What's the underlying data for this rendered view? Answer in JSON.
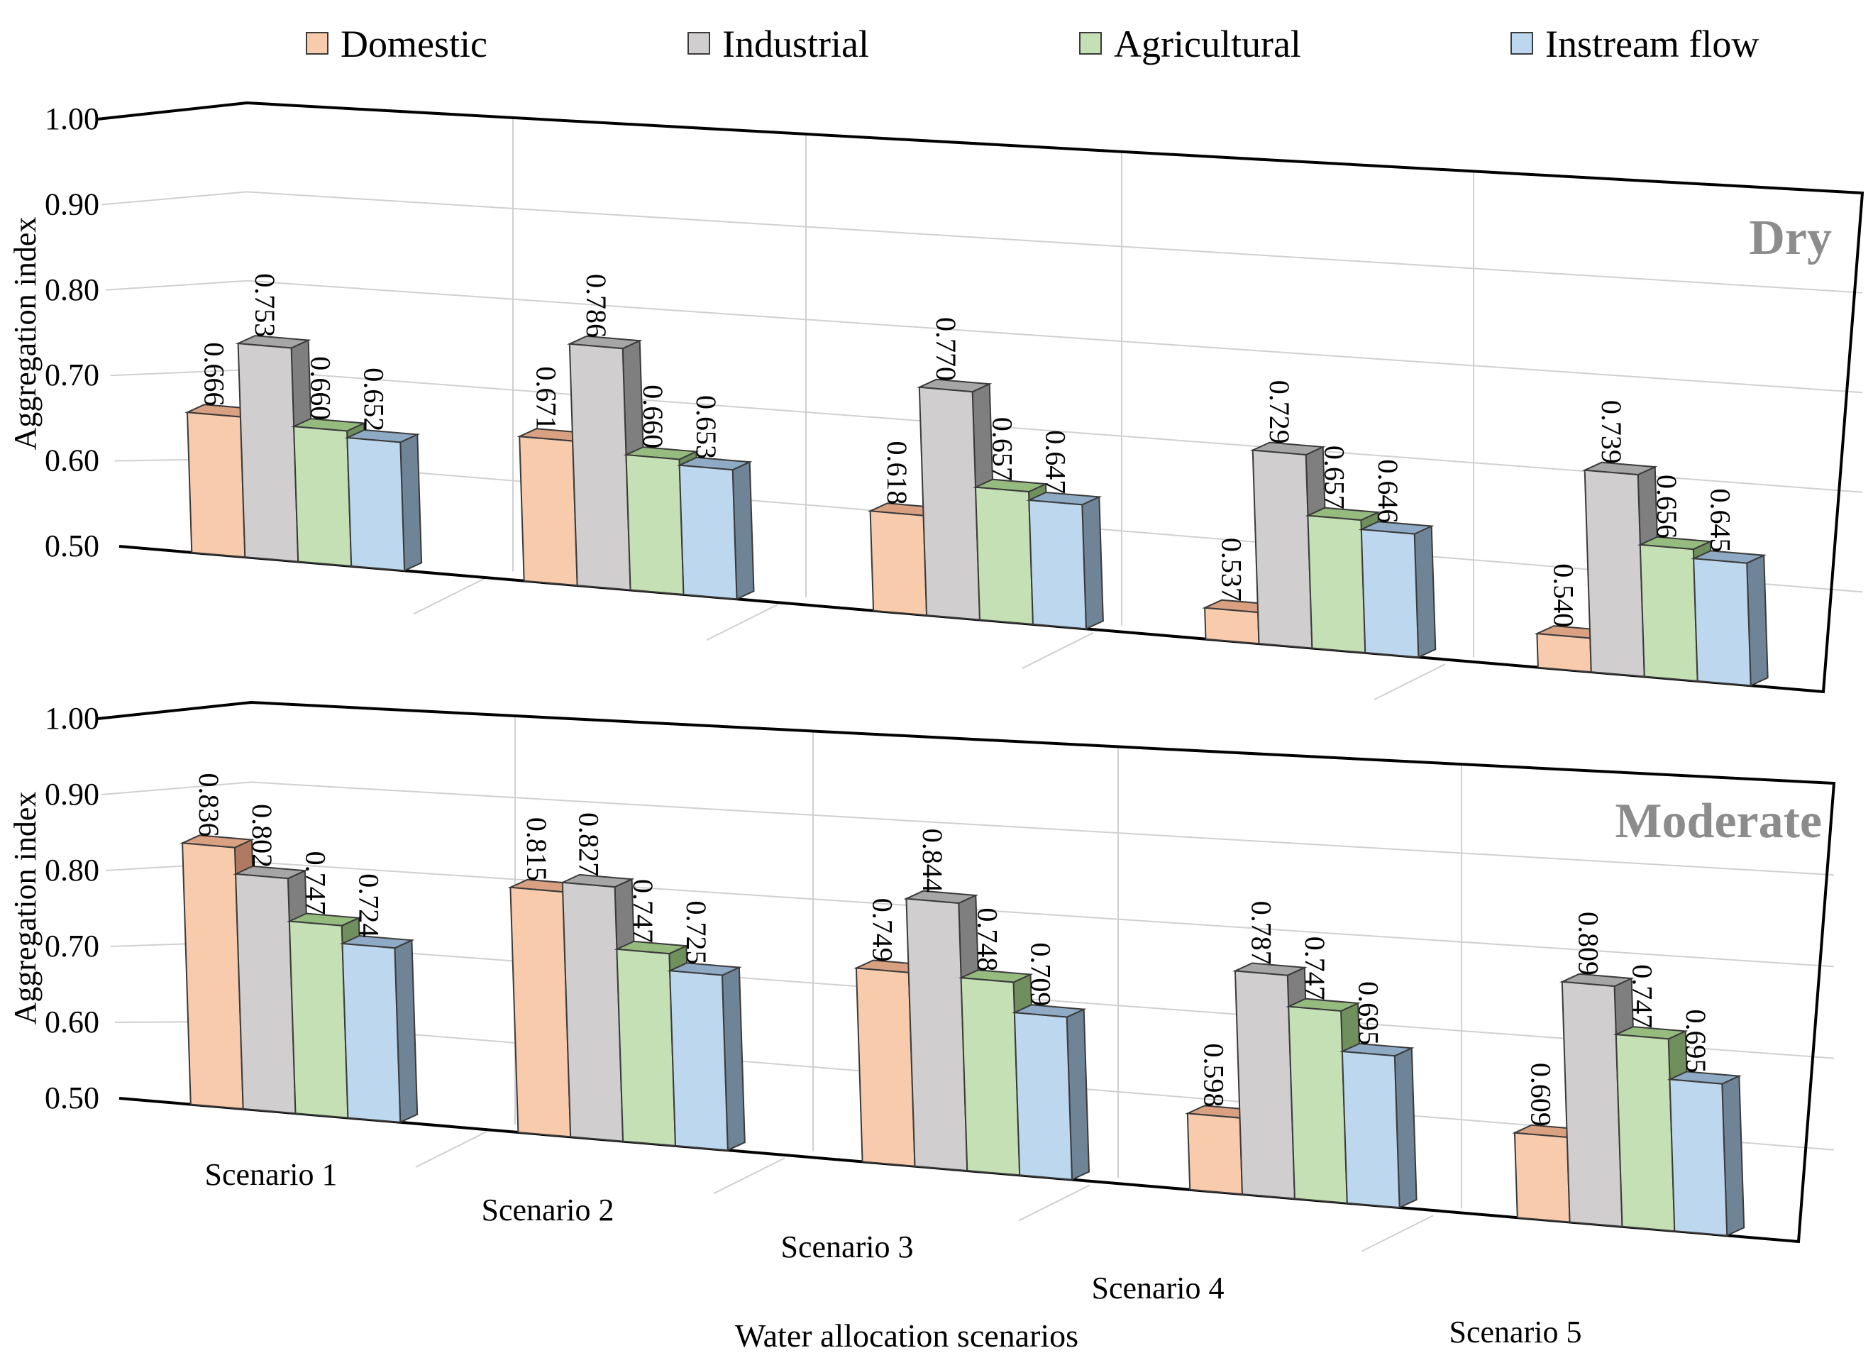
{
  "chart_data": [
    {
      "type": "bar",
      "subtype": "3d-clustered-column",
      "title": "Dry",
      "ylabel": "Aggregation index",
      "xlabel": "",
      "ylim": [
        0.5,
        1.0
      ],
      "yticks": [
        "0.50",
        "0.60",
        "0.70",
        "0.80",
        "0.90",
        "1.00"
      ],
      "grid": true,
      "categories": [
        "Scenario 1",
        "Scenario 2",
        "Scenario 3",
        "Scenario 4",
        "Scenario 5"
      ],
      "series": [
        {
          "name": "Domestic",
          "values": [
            0.666,
            0.671,
            0.618,
            0.537,
            0.54
          ]
        },
        {
          "name": "Industrial",
          "values": [
            0.753,
            0.786,
            0.77,
            0.729,
            0.739
          ]
        },
        {
          "name": "Agricultural",
          "values": [
            0.66,
            0.66,
            0.657,
            0.657,
            0.656
          ]
        },
        {
          "name": "Instream flow",
          "values": [
            0.652,
            0.653,
            0.647,
            0.646,
            0.645
          ]
        }
      ],
      "data_labels": [
        [
          "0.666",
          "0.753",
          "0.660",
          "0.652"
        ],
        [
          "0.671",
          "0.786",
          "0.660",
          "0.653"
        ],
        [
          "0.618",
          "0.770",
          "0.657",
          "0.647"
        ],
        [
          "0.537",
          "0.729",
          "0.657",
          "0.646"
        ],
        [
          "0.540",
          "0.739",
          "0.656",
          "0.645"
        ]
      ]
    },
    {
      "type": "bar",
      "subtype": "3d-clustered-column",
      "title": "Moderate",
      "ylabel": "Aggregation index",
      "xlabel": "Water allocation scenarios",
      "ylim": [
        0.5,
        1.0
      ],
      "yticks": [
        "0.50",
        "0.60",
        "0.70",
        "0.80",
        "0.90",
        "1.00"
      ],
      "grid": true,
      "categories": [
        "Scenario 1",
        "Scenario 2",
        "Scenario 3",
        "Scenario 4",
        "Scenario 5"
      ],
      "series": [
        {
          "name": "Domestic",
          "values": [
            0.836,
            0.815,
            0.749,
            0.598,
            0.609
          ]
        },
        {
          "name": "Industrial",
          "values": [
            0.802,
            0.827,
            0.844,
            0.787,
            0.809
          ]
        },
        {
          "name": "Agricultural",
          "values": [
            0.747,
            0.747,
            0.748,
            0.747,
            0.747
          ]
        },
        {
          "name": "Instream flow",
          "values": [
            0.724,
            0.725,
            0.709,
            0.695,
            0.695
          ]
        }
      ],
      "data_labels": [
        [
          "0.836",
          "0.802",
          "0.747",
          "0.724"
        ],
        [
          "0.815",
          "0.827",
          "0.747",
          "0.725"
        ],
        [
          "0.749",
          "0.844",
          "0.748",
          "0.709"
        ],
        [
          "0.598",
          "0.787",
          "0.747",
          "0.695"
        ],
        [
          "0.609",
          "0.809",
          "0.747",
          "0.695"
        ]
      ]
    }
  ],
  "legend": {
    "position": "top-center",
    "items": [
      {
        "name": "Domestic",
        "color": "#f8cbad"
      },
      {
        "name": "Industrial",
        "color": "#d0cece"
      },
      {
        "name": "Agricultural",
        "color": "#c5e0b4"
      },
      {
        "name": "Instream flow",
        "color": "#bdd7ee"
      }
    ]
  },
  "colors": {
    "Domestic": {
      "front": "#f8cbad",
      "side": "#b07a62",
      "top": "#d9a082"
    },
    "Industrial": {
      "front": "#d0cece",
      "side": "#7f7f7f",
      "top": "#a6a6a6"
    },
    "Agricultural": {
      "front": "#c5e0b4",
      "side": "#6f8f5c",
      "top": "#95bb7f"
    },
    "Instream flow": {
      "front": "#bdd7ee",
      "side": "#6f8497",
      "top": "#8eaac4"
    }
  }
}
